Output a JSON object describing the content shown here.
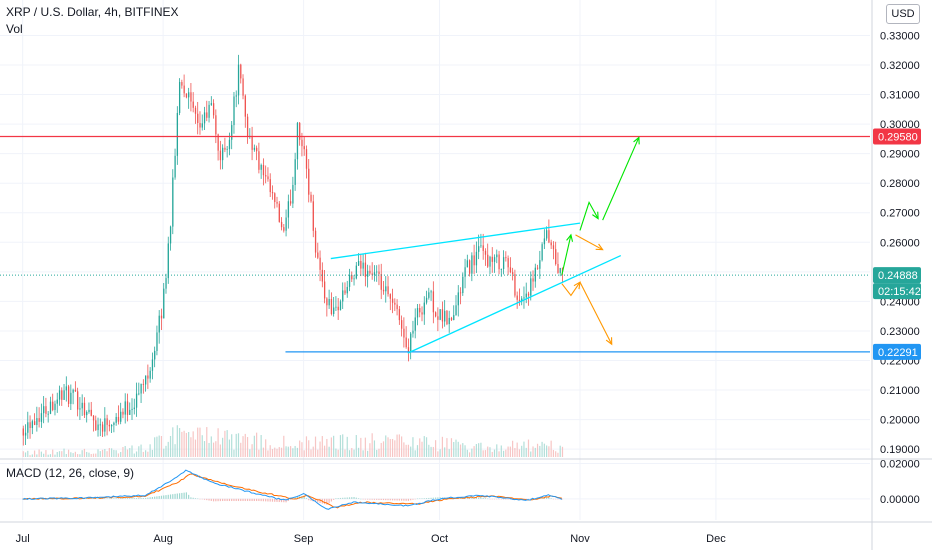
{
  "header": {
    "title": "XRP / U.S. Dollar, 4h, BITFINEX",
    "volume_label": "Vol",
    "currency": "USD"
  },
  "macd": {
    "label": "MACD (12, 26, close, 9)"
  },
  "colors": {
    "up": "#26a69a",
    "down": "#ef5350",
    "resistance": "#f23645",
    "support": "#2196f3",
    "channel": "#00e5ff",
    "arrow_bull": "#00e600",
    "arrow_bear": "#ff9800",
    "macd_line": "#2196f3",
    "signal_line": "#ff6d00",
    "price_tag": "#26a69a",
    "grid": "#f0f3fa"
  },
  "chart_data": {
    "type": "candlestick",
    "symbol": "XRP / U.S. Dollar",
    "interval": "4h",
    "exchange": "BITFINEX",
    "price_axis": {
      "ticks": [
        "0.33000",
        "0.32000",
        "0.31000",
        "0.30000",
        "0.29000",
        "0.28000",
        "0.27000",
        "0.26000",
        "0.25000",
        "0.24000",
        "0.23000",
        "0.22000",
        "0.21000",
        "0.20000",
        "0.19000"
      ],
      "range": [
        0.187,
        0.342
      ]
    },
    "time_axis": {
      "ticks": [
        "Jul",
        "Aug",
        "Sep",
        "Oct",
        "Nov",
        "Dec"
      ]
    },
    "macd_axis": {
      "ticks": [
        "0.02000",
        "0.00000"
      ],
      "range": [
        -0.012,
        0.022
      ]
    },
    "price_path": [
      [
        "2019-07-01",
        0.197
      ],
      [
        "2019-07-06",
        0.203
      ],
      [
        "2019-07-10",
        0.209
      ],
      [
        "2019-07-14",
        0.206
      ],
      [
        "2019-07-18",
        0.198
      ],
      [
        "2019-07-22",
        0.201
      ],
      [
        "2019-07-26",
        0.206
      ],
      [
        "2019-07-28",
        0.212
      ],
      [
        "2019-07-30",
        0.221
      ],
      [
        "2019-08-01",
        0.236
      ],
      [
        "2019-08-02",
        0.25
      ],
      [
        "2019-08-03",
        0.268
      ],
      [
        "2019-08-04",
        0.29
      ],
      [
        "2019-08-05",
        0.316
      ],
      [
        "2019-08-07",
        0.309
      ],
      [
        "2019-08-09",
        0.298
      ],
      [
        "2019-08-12",
        0.306
      ],
      [
        "2019-08-14",
        0.288
      ],
      [
        "2019-08-16",
        0.296
      ],
      [
        "2019-08-18",
        0.318
      ],
      [
        "2019-08-20",
        0.298
      ],
      [
        "2019-08-23",
        0.284
      ],
      [
        "2019-08-26",
        0.273
      ],
      [
        "2019-08-28",
        0.262
      ],
      [
        "2019-08-30",
        0.28
      ],
      [
        "2019-08-31",
        0.301
      ],
      [
        "2019-09-02",
        0.285
      ],
      [
        "2019-09-04",
        0.259
      ],
      [
        "2019-09-06",
        0.242
      ],
      [
        "2019-09-08",
        0.236
      ],
      [
        "2019-09-11",
        0.245
      ],
      [
        "2019-09-14",
        0.252
      ],
      [
        "2019-09-17",
        0.249
      ],
      [
        "2019-09-20",
        0.241
      ],
      [
        "2019-09-23",
        0.233
      ],
      [
        "2019-09-24",
        0.223
      ],
      [
        "2019-09-26",
        0.234
      ],
      [
        "2019-09-29",
        0.243
      ],
      [
        "2019-10-01",
        0.235
      ],
      [
        "2019-10-04",
        0.233
      ],
      [
        "2019-10-07",
        0.25
      ],
      [
        "2019-10-10",
        0.257
      ],
      [
        "2019-10-13",
        0.253
      ],
      [
        "2019-10-16",
        0.254
      ],
      [
        "2019-10-19",
        0.24
      ],
      [
        "2019-10-22",
        0.246
      ],
      [
        "2019-10-25",
        0.262
      ],
      [
        "2019-10-27",
        0.253
      ],
      [
        "2019-10-28",
        0.249
      ]
    ],
    "volume_path": [
      [
        "2019-07-01",
        0.15
      ],
      [
        "2019-07-28",
        0.3
      ],
      [
        "2019-08-03",
        0.9
      ],
      [
        "2019-08-05",
        0.7
      ],
      [
        "2019-08-18",
        0.6
      ],
      [
        "2019-08-31",
        0.45
      ],
      [
        "2019-09-06",
        0.5
      ],
      [
        "2019-09-24",
        0.55
      ],
      [
        "2019-10-10",
        0.35
      ],
      [
        "2019-10-25",
        0.4
      ],
      [
        "2019-10-28",
        0.25
      ]
    ],
    "macd_line": [
      [
        "2019-07-01",
        0.0
      ],
      [
        "2019-07-15",
        0.0005
      ],
      [
        "2019-07-28",
        0.002
      ],
      [
        "2019-08-04",
        0.012
      ],
      [
        "2019-08-06",
        0.016
      ],
      [
        "2019-08-12",
        0.009
      ],
      [
        "2019-08-20",
        0.004
      ],
      [
        "2019-08-28",
        -0.001
      ],
      [
        "2019-09-01",
        0.003
      ],
      [
        "2019-09-06",
        -0.006
      ],
      [
        "2019-09-12",
        -0.002
      ],
      [
        "2019-09-24",
        -0.004
      ],
      [
        "2019-10-01",
        0.0
      ],
      [
        "2019-10-10",
        0.002
      ],
      [
        "2019-10-20",
        -0.001
      ],
      [
        "2019-10-25",
        0.002
      ],
      [
        "2019-10-28",
        0.0
      ]
    ],
    "signal_line": [
      [
        "2019-07-01",
        0.0
      ],
      [
        "2019-07-15",
        0.0003
      ],
      [
        "2019-07-28",
        0.0015
      ],
      [
        "2019-08-04",
        0.009
      ],
      [
        "2019-08-07",
        0.014
      ],
      [
        "2019-08-14",
        0.009
      ],
      [
        "2019-08-22",
        0.004
      ],
      [
        "2019-08-30",
        0.0
      ],
      [
        "2019-09-02",
        0.002
      ],
      [
        "2019-09-08",
        -0.005
      ],
      [
        "2019-09-14",
        -0.002
      ],
      [
        "2019-09-26",
        -0.003
      ],
      [
        "2019-10-03",
        0.0
      ],
      [
        "2019-10-12",
        0.0015
      ],
      [
        "2019-10-21",
        -0.0005
      ],
      [
        "2019-10-26",
        0.0015
      ],
      [
        "2019-10-28",
        0.0003
      ]
    ],
    "horizontal_levels": [
      {
        "name": "resistance",
        "value": 0.2958,
        "label": "0.29580",
        "color": "#f23645",
        "from": "2019-06-26",
        "to": "2020-01-04"
      },
      {
        "name": "support",
        "value": 0.22291,
        "label": "0.22291",
        "color": "#2196f3",
        "from": "2019-08-28",
        "to": "2020-01-04"
      }
    ],
    "current_price": {
      "value": 0.24888,
      "label": "0.24888",
      "countdown": "02:15:42"
    },
    "trendlines": [
      {
        "name": "channel-upper",
        "from": [
          "2019-09-07",
          0.2545
        ],
        "to": [
          "2019-11-01",
          0.2665
        ]
      },
      {
        "name": "channel-lower",
        "from": [
          "2019-09-24",
          0.2225
        ],
        "to": [
          "2019-11-10",
          0.2555
        ]
      }
    ],
    "projection_arrows": [
      {
        "name": "bull-arrow-1",
        "kind": "bull",
        "points": [
          [
            "2019-10-28",
            0.249
          ],
          [
            "2019-10-30",
            0.2625
          ]
        ]
      },
      {
        "name": "bull-arrow-2",
        "kind": "bull",
        "points": [
          [
            "2019-11-01",
            0.264
          ],
          [
            "2019-11-03",
            0.2735
          ],
          [
            "2019-11-05",
            0.268
          ]
        ]
      },
      {
        "name": "bull-arrow-3",
        "kind": "bull",
        "points": [
          [
            "2019-11-06",
            0.2675
          ],
          [
            "2019-11-14",
            0.2955
          ]
        ]
      },
      {
        "name": "bear-arrow-1",
        "kind": "bear",
        "points": [
          [
            "2019-10-31",
            0.2625
          ],
          [
            "2019-11-06",
            0.2575
          ]
        ]
      },
      {
        "name": "bear-arrow-2",
        "kind": "bear",
        "points": [
          [
            "2019-10-28",
            0.246
          ],
          [
            "2019-10-30",
            0.242
          ],
          [
            "2019-11-01",
            0.2465
          ]
        ]
      },
      {
        "name": "bear-arrow-3",
        "kind": "bear",
        "points": [
          [
            "2019-11-01",
            0.2465
          ],
          [
            "2019-11-08",
            0.2255
          ]
        ]
      }
    ]
  }
}
